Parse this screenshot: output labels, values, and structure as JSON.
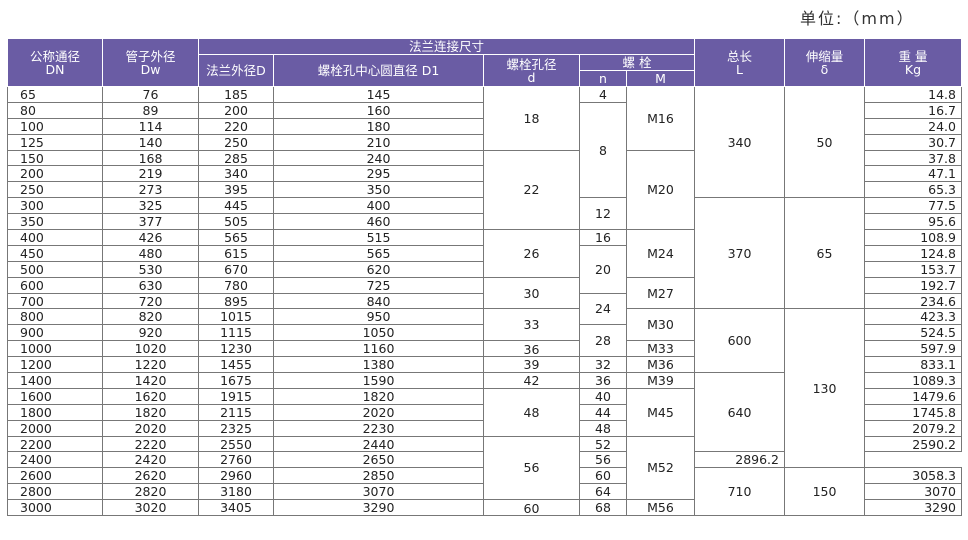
{
  "unit_label": "单位:（mm）",
  "header": {
    "dn": "公称通径",
    "dn_sub": "DN",
    "dw": "管子外径",
    "dw_sub": "Dw",
    "flange_group": "法兰连接尺寸",
    "flange_d": "法兰外径D",
    "bolt_circle": "螺栓孔中心圆直径 D1",
    "bolt_hole": "螺栓孔径",
    "bolt_hole_sub": "d",
    "bolt": "螺 栓",
    "bolt_n": "n",
    "bolt_m": "M",
    "length": "总长",
    "length_sub": "L",
    "expansion": "伸缩量",
    "expansion_sub": "δ",
    "weight": "重 量",
    "weight_sub": "Kg"
  },
  "rows": [
    {
      "dn": "65",
      "dw": "76",
      "D": "185",
      "D1": "145",
      "w": "14.8"
    },
    {
      "dn": "80",
      "dw": "89",
      "D": "200",
      "D1": "160",
      "w": "16.7"
    },
    {
      "dn": "100",
      "dw": "114",
      "D": "220",
      "D1": "180",
      "w": "24.0"
    },
    {
      "dn": "125",
      "dw": "140",
      "D": "250",
      "D1": "210",
      "w": "30.7"
    },
    {
      "dn": "150",
      "dw": "168",
      "D": "285",
      "D1": "240",
      "w": "37.8"
    },
    {
      "dn": "200",
      "dw": "219",
      "D": "340",
      "D1": "295",
      "w": "47.1"
    },
    {
      "dn": "250",
      "dw": "273",
      "D": "395",
      "D1": "350",
      "w": "65.3"
    },
    {
      "dn": "300",
      "dw": "325",
      "D": "445",
      "D1": "400",
      "w": "77.5"
    },
    {
      "dn": "350",
      "dw": "377",
      "D": "505",
      "D1": "460",
      "w": "95.6"
    },
    {
      "dn": "400",
      "dw": "426",
      "D": "565",
      "D1": "515",
      "w": "108.9"
    },
    {
      "dn": "450",
      "dw": "480",
      "D": "615",
      "D1": "565",
      "w": "124.8"
    },
    {
      "dn": "500",
      "dw": "530",
      "D": "670",
      "D1": "620",
      "w": "153.7"
    },
    {
      "dn": "600",
      "dw": "630",
      "D": "780",
      "D1": "725",
      "w": "192.7"
    },
    {
      "dn": "700",
      "dw": "720",
      "D": "895",
      "D1": "840",
      "w": "234.6"
    },
    {
      "dn": "800",
      "dw": "820",
      "D": "1015",
      "D1": "950",
      "w": "423.3"
    },
    {
      "dn": "900",
      "dw": "920",
      "D": "1115",
      "D1": "1050",
      "w": "524.5"
    },
    {
      "dn": "1000",
      "dw": "1020",
      "D": "1230",
      "D1": "1160",
      "w": "597.9"
    },
    {
      "dn": "1200",
      "dw": "1220",
      "D": "1455",
      "D1": "1380",
      "w": "833.1"
    },
    {
      "dn": "1400",
      "dw": "1420",
      "D": "1675",
      "D1": "1590",
      "w": "1089.3"
    },
    {
      "dn": "1600",
      "dw": "1620",
      "D": "1915",
      "D1": "1820",
      "w": "1479.6"
    },
    {
      "dn": "1800",
      "dw": "1820",
      "D": "2115",
      "D1": "2020",
      "w": "1745.8"
    },
    {
      "dn": "2000",
      "dw": "2020",
      "D": "2325",
      "D1": "2230",
      "w": "2079.2"
    },
    {
      "dn": "2200",
      "dw": "2220",
      "D": "2550",
      "D1": "2440",
      "w": "2590.2"
    },
    {
      "dn": "2400",
      "dw": "2420",
      "D": "2760",
      "D1": "2650",
      "w": "2896.2"
    },
    {
      "dn": "2600",
      "dw": "2620",
      "D": "2960",
      "D1": "2850",
      "w": "3058.3"
    },
    {
      "dn": "2800",
      "dw": "2820",
      "D": "3180",
      "D1": "3070",
      "w": "3070"
    },
    {
      "dn": "3000",
      "dw": "3020",
      "D": "3405",
      "D1": "3290",
      "w": "3290"
    }
  ],
  "bolt_hole_d": [
    "18",
    "22",
    "26",
    "30",
    "33",
    "36",
    "39",
    "42",
    "48",
    "56",
    "60"
  ],
  "bolt_n": [
    "4",
    "8",
    "12",
    "16",
    "20",
    "24",
    "28",
    "32",
    "36",
    "40",
    "44",
    "48",
    "52",
    "56",
    "60",
    "64",
    "68"
  ],
  "bolt_m": [
    "M16",
    "M20",
    "M24",
    "M27",
    "M30",
    "M33",
    "M36",
    "M39",
    "M45",
    "M52",
    "M56"
  ],
  "length_L": [
    "340",
    "370",
    "600",
    "640",
    "710"
  ],
  "expansion": [
    "50",
    "65",
    "130",
    "150"
  ]
}
